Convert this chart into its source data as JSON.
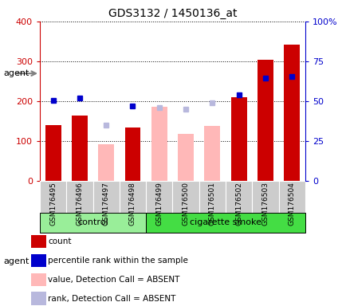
{
  "title": "GDS3132 / 1450136_at",
  "samples": [
    "GSM176495",
    "GSM176496",
    "GSM176497",
    "GSM176498",
    "GSM176499",
    "GSM176500",
    "GSM176501",
    "GSM176502",
    "GSM176503",
    "GSM176504"
  ],
  "groups": [
    "control",
    "control",
    "control",
    "control",
    "cigarette smoke",
    "cigarette smoke",
    "cigarette smoke",
    "cigarette smoke",
    "cigarette smoke",
    "cigarette smoke"
  ],
  "count_values": [
    140,
    163,
    null,
    133,
    null,
    null,
    null,
    210,
    303,
    342
  ],
  "count_absent_values": [
    null,
    null,
    92,
    null,
    185,
    118,
    138,
    null,
    null,
    null
  ],
  "percentile_rank_values": [
    201,
    208,
    null,
    188,
    null,
    null,
    null,
    215,
    258,
    262
  ],
  "percentile_rank_absent_values": [
    null,
    null,
    140,
    null,
    184,
    180,
    196,
    null,
    null,
    null
  ],
  "ylim_left": [
    0,
    400
  ],
  "ylim_right": [
    0,
    100
  ],
  "yticks_left": [
    0,
    100,
    200,
    300,
    400
  ],
  "yticks_right": [
    0,
    25,
    50,
    75,
    100
  ],
  "ytick_labels_right": [
    "0",
    "25",
    "50",
    "75",
    "100%"
  ],
  "color_count": "#cc0000",
  "color_percentile": "#0000cc",
  "color_absent_value": "#ffb8b8",
  "color_absent_rank": "#b8b8dd",
  "color_control_bg": "#99ee99",
  "color_smoke_bg": "#44dd44",
  "color_axis_left": "#cc0000",
  "color_axis_right": "#0000cc",
  "legend_items": [
    {
      "label": "count",
      "color": "#cc0000"
    },
    {
      "label": "percentile rank within the sample",
      "color": "#0000cc"
    },
    {
      "label": "value, Detection Call = ABSENT",
      "color": "#ffb8b8"
    },
    {
      "label": "rank, Detection Call = ABSENT",
      "color": "#b8b8dd"
    }
  ],
  "bar_width": 0.6,
  "ctrl_count": 4,
  "smoke_count": 6,
  "agent_label": "agent",
  "control_label": "control",
  "smoke_label": "cigarette smoke"
}
